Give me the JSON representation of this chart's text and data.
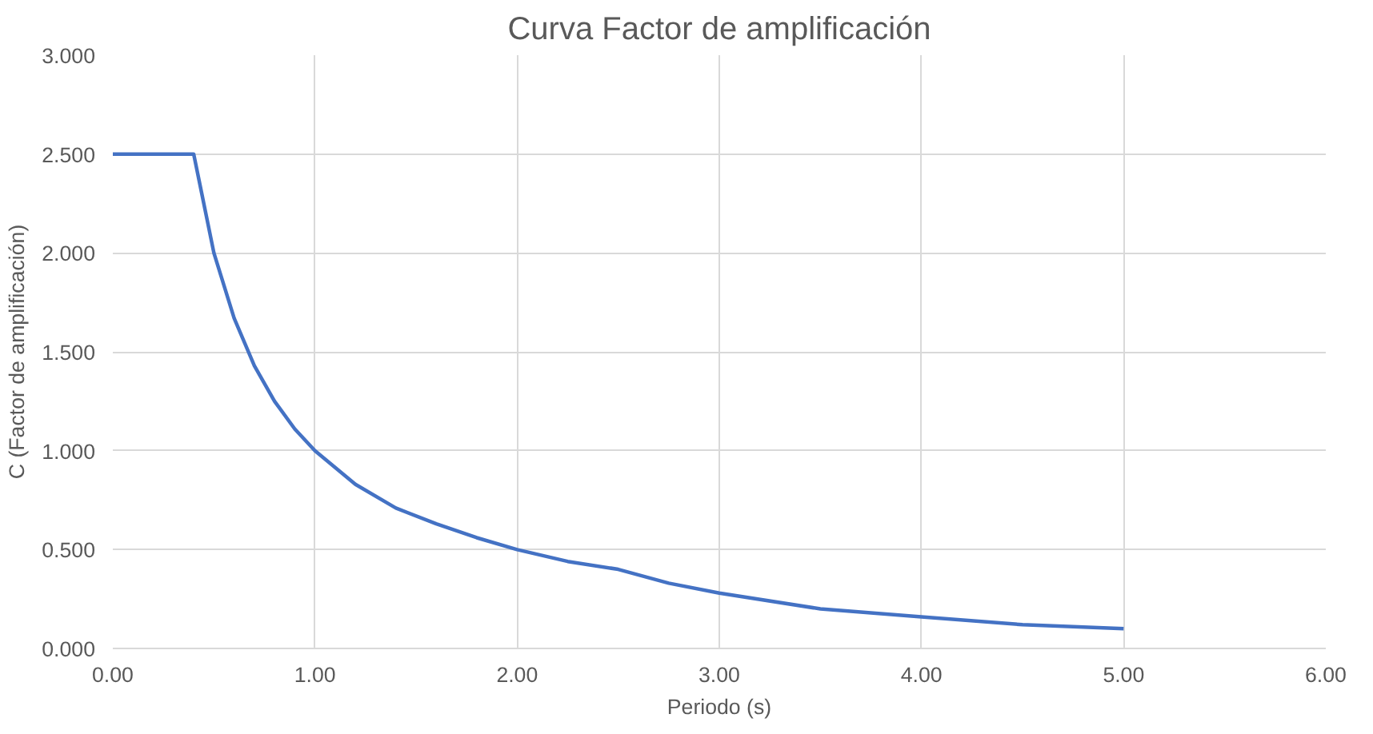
{
  "chart_data": {
    "type": "line",
    "title": "Curva Factor de amplificación",
    "xlabel": "Periodo (s)",
    "ylabel": "C (Factor de amplificación)",
    "x": [
      0,
      0.4,
      0.5,
      0.6,
      0.7,
      0.8,
      0.9,
      1.0,
      1.2,
      1.4,
      1.6,
      1.8,
      2.0,
      2.25,
      2.5,
      2.75,
      3.0,
      3.5,
      4.0,
      4.5,
      5.0
    ],
    "series": [
      {
        "color": "#4472c4",
        "values": [
          2.5,
          2.5,
          2.0,
          1.67,
          1.43,
          1.25,
          1.11,
          1.0,
          0.83,
          0.71,
          0.63,
          0.56,
          0.5,
          0.44,
          0.4,
          0.33,
          0.28,
          0.2,
          0.16,
          0.12,
          0.1
        ]
      }
    ],
    "xlim": [
      0,
      6
    ],
    "ylim": [
      0,
      3
    ],
    "xticks": [
      {
        "value": 0,
        "label": "0.00"
      },
      {
        "value": 1,
        "label": "1.00"
      },
      {
        "value": 2,
        "label": "2.00"
      },
      {
        "value": 3,
        "label": "3.00"
      },
      {
        "value": 4,
        "label": "4.00"
      },
      {
        "value": 5,
        "label": "5.00"
      },
      {
        "value": 6,
        "label": "6.00"
      }
    ],
    "yticks": [
      {
        "value": 0,
        "label": "0.000"
      },
      {
        "value": 0.5,
        "label": "0.500"
      },
      {
        "value": 1,
        "label": "1.000"
      },
      {
        "value": 1.5,
        "label": "1.500"
      },
      {
        "value": 2,
        "label": "2.000"
      },
      {
        "value": 2.5,
        "label": "2.500"
      },
      {
        "value": 3,
        "label": "3.000"
      }
    ],
    "grid": true,
    "marker": "none",
    "line_style": "solid"
  }
}
